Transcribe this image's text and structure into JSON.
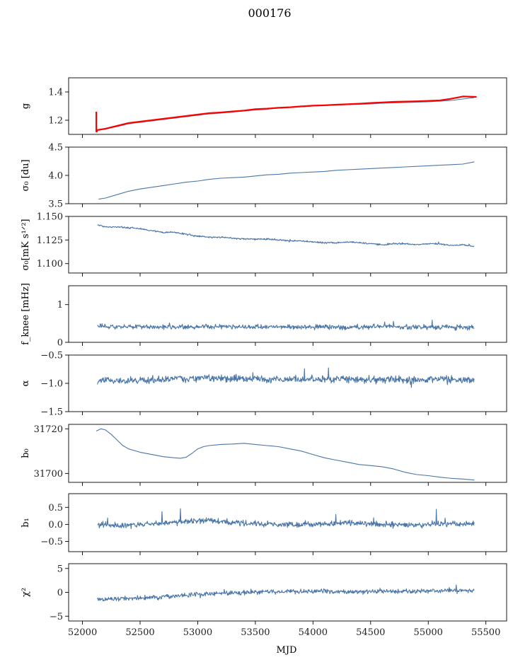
{
  "figure": {
    "title": "000176",
    "xlabel": "MJD"
  },
  "colors": {
    "series": "#4a76a8",
    "model": "#ff0000"
  },
  "chart_data": [
    {
      "type": "line",
      "ylabel": "g",
      "ylim": [
        1.1,
        1.5
      ],
      "yticks": [
        1.2,
        1.4
      ],
      "ytick_labels": [
        "1.2",
        "1.4"
      ],
      "xlim": [
        51880,
        55680
      ],
      "series": [
        {
          "color": "#4a76a8",
          "style": "thin",
          "x": [
            52120,
            52200,
            52300,
            52400,
            52500,
            52600,
            52700,
            52800,
            52900,
            53000,
            53100,
            53200,
            53300,
            53400,
            53500,
            53600,
            53700,
            53800,
            53900,
            54000,
            54100,
            54200,
            54300,
            54400,
            54500,
            54600,
            54700,
            54800,
            54900,
            55000,
            55100,
            55200,
            55300,
            55400
          ],
          "y": [
            1.13,
            1.14,
            1.155,
            1.175,
            1.185,
            1.195,
            1.205,
            1.215,
            1.225,
            1.235,
            1.245,
            1.25,
            1.258,
            1.265,
            1.272,
            1.278,
            1.285,
            1.29,
            1.295,
            1.3,
            1.303,
            1.307,
            1.31,
            1.312,
            1.316,
            1.32,
            1.323,
            1.326,
            1.328,
            1.33,
            1.335,
            1.34,
            1.35,
            1.36
          ]
        },
        {
          "color": "#ff0000",
          "style": "thick",
          "x": [
            52120,
            52120,
            52125,
            52125,
            52200,
            52300,
            52400,
            52500,
            52600,
            52700,
            52800,
            52900,
            53000,
            53100,
            53200,
            53300,
            53400,
            53500,
            53600,
            53700,
            53800,
            53900,
            54000,
            54100,
            54200,
            54300,
            54400,
            54500,
            54600,
            54700,
            54800,
            54900,
            55000,
            55100,
            55200,
            55300,
            55420
          ],
          "y": [
            1.26,
            1.12,
            1.12,
            1.13,
            1.14,
            1.16,
            1.18,
            1.19,
            1.2,
            1.21,
            1.22,
            1.23,
            1.24,
            1.25,
            1.255,
            1.262,
            1.268,
            1.278,
            1.282,
            1.288,
            1.292,
            1.298,
            1.303,
            1.306,
            1.31,
            1.313,
            1.317,
            1.322,
            1.326,
            1.33,
            1.332,
            1.334,
            1.337,
            1.34,
            1.352,
            1.368,
            1.365
          ]
        }
      ]
    },
    {
      "type": "line",
      "ylabel": "σ₀ [du]",
      "ylim": [
        3.5,
        4.5
      ],
      "yticks": [
        3.5,
        4.0,
        4.5
      ],
      "ytick_labels": [
        "3.5",
        "4.0",
        "4.5"
      ],
      "xlim": [
        51880,
        55680
      ],
      "series": [
        {
          "color": "#4a76a8",
          "style": "thin",
          "x": [
            52140,
            52200,
            52300,
            52400,
            52500,
            52600,
            52700,
            52800,
            52900,
            53000,
            53100,
            53200,
            53300,
            53400,
            53500,
            53600,
            53700,
            53800,
            53900,
            54000,
            54100,
            54200,
            54300,
            54400,
            54500,
            54600,
            54700,
            54800,
            54900,
            55000,
            55100,
            55200,
            55300,
            55400
          ],
          "y": [
            3.58,
            3.6,
            3.66,
            3.72,
            3.76,
            3.79,
            3.82,
            3.85,
            3.88,
            3.9,
            3.93,
            3.95,
            3.96,
            3.97,
            3.99,
            4.01,
            4.02,
            4.04,
            4.05,
            4.06,
            4.07,
            4.09,
            4.1,
            4.11,
            4.12,
            4.13,
            4.14,
            4.15,
            4.16,
            4.17,
            4.18,
            4.19,
            4.2,
            4.24
          ]
        }
      ]
    },
    {
      "type": "line",
      "ylabel": "σ₀[mK s¹ᐟ²]",
      "ylim": [
        1.09,
        1.15
      ],
      "yticks": [
        1.1,
        1.125,
        1.15
      ],
      "ytick_labels": [
        "1.100",
        "1.125",
        "1.150"
      ],
      "xlim": [
        51880,
        55680
      ],
      "series": [
        {
          "color": "#4a76a8",
          "style": "noisy",
          "x": [
            52130,
            52200,
            52300,
            52400,
            52500,
            52600,
            52700,
            52800,
            52900,
            53000,
            53100,
            53200,
            53300,
            53400,
            53500,
            53600,
            53700,
            53800,
            53900,
            54000,
            54100,
            54200,
            54300,
            54400,
            54500,
            54600,
            54700,
            54800,
            54900,
            55000,
            55100,
            55200,
            55300,
            55400
          ],
          "y": [
            1.141,
            1.139,
            1.139,
            1.138,
            1.137,
            1.135,
            1.133,
            1.133,
            1.131,
            1.129,
            1.128,
            1.128,
            1.127,
            1.126,
            1.126,
            1.126,
            1.125,
            1.124,
            1.124,
            1.123,
            1.122,
            1.122,
            1.123,
            1.122,
            1.121,
            1.12,
            1.121,
            1.121,
            1.12,
            1.121,
            1.121,
            1.119,
            1.12,
            1.118
          ]
        }
      ]
    },
    {
      "type": "line",
      "ylabel": "f_knee [mHz]",
      "ylim": [
        0,
        1.5
      ],
      "yticks": [
        0,
        1
      ],
      "ytick_labels": [
        "0",
        "1"
      ],
      "xlim": [
        51880,
        55680
      ],
      "series": [
        {
          "color": "#4a76a8",
          "style": "noisy",
          "x": [
            52130,
            52300,
            52500,
            52700,
            52900,
            53100,
            53300,
            53500,
            53700,
            53900,
            54100,
            54300,
            54500,
            54700,
            54900,
            55100,
            55300,
            55400
          ],
          "y": [
            0.45,
            0.4,
            0.42,
            0.4,
            0.4,
            0.42,
            0.41,
            0.4,
            0.41,
            0.4,
            0.41,
            0.4,
            0.41,
            0.42,
            0.4,
            0.4,
            0.4,
            0.4
          ]
        }
      ]
    },
    {
      "type": "line",
      "ylabel": "α",
      "ylim": [
        -1.5,
        -0.5
      ],
      "yticks": [
        -1.5,
        -1.0,
        -0.5
      ],
      "ytick_labels": [
        "−1.5",
        "−1.0",
        "−0.5"
      ],
      "xlim": [
        51880,
        55680
      ],
      "series": [
        {
          "color": "#4a76a8",
          "style": "noisy",
          "x": [
            52130,
            52300,
            52500,
            52700,
            52900,
            53100,
            53300,
            53500,
            53700,
            53900,
            54100,
            54300,
            54500,
            54700,
            54900,
            55100,
            55300,
            55400
          ],
          "y": [
            -0.95,
            -0.95,
            -0.95,
            -0.93,
            -0.92,
            -0.9,
            -0.92,
            -0.92,
            -0.93,
            -0.93,
            -0.93,
            -0.93,
            -0.94,
            -0.93,
            -0.94,
            -0.93,
            -0.93,
            -0.93
          ]
        }
      ]
    },
    {
      "type": "line",
      "ylabel": "b₀",
      "ylim": [
        31696,
        31722
      ],
      "yticks": [
        31700,
        31720
      ],
      "ytick_labels": [
        "31700",
        "31720"
      ],
      "xlim": [
        51880,
        55680
      ],
      "series": [
        {
          "color": "#4a76a8",
          "style": "thin",
          "x": [
            52120,
            52160,
            52200,
            52250,
            52300,
            52350,
            52400,
            52500,
            52600,
            52700,
            52800,
            52850,
            52900,
            52950,
            53000,
            53050,
            53100,
            53200,
            53300,
            53400,
            53500,
            53600,
            53700,
            53800,
            53900,
            54000,
            54100,
            54200,
            54300,
            54400,
            54500,
            54600,
            54700,
            54800,
            54900,
            55000,
            55100,
            55200,
            55300,
            55400
          ],
          "y": [
            31719,
            31720,
            31719.5,
            31717.5,
            31715,
            31712.5,
            31711,
            31709.5,
            31708.5,
            31707.5,
            31707,
            31706.8,
            31707.3,
            31709,
            31711,
            31712,
            31712.5,
            31713,
            31713.2,
            31713.5,
            31713,
            31712.5,
            31712,
            31711,
            31710,
            31708.5,
            31707,
            31706,
            31705,
            31704,
            31703.5,
            31703,
            31702,
            31700.5,
            31699.5,
            31699,
            31698.3,
            31697.8,
            31697.5,
            31697
          ]
        }
      ]
    },
    {
      "type": "line",
      "ylabel": "b₁",
      "ylim": [
        -0.8,
        0.9
      ],
      "yticks": [
        -0.5,
        0.0,
        0.5
      ],
      "ytick_labels": [
        "−0.5",
        "0.0",
        "0.5"
      ],
      "xlim": [
        51880,
        55680
      ],
      "series": [
        {
          "color": "#4a76a8",
          "style": "noisy",
          "x": [
            52130,
            52300,
            52500,
            52700,
            52900,
            53100,
            53300,
            53500,
            53700,
            53900,
            54100,
            54300,
            54500,
            54700,
            54900,
            55100,
            55300,
            55400
          ],
          "y": [
            0.0,
            -0.05,
            0.0,
            0.02,
            0.1,
            0.12,
            0.05,
            0.02,
            0.0,
            0.0,
            0.02,
            0.05,
            0.0,
            0.0,
            -0.02,
            0.02,
            0.0,
            0.05
          ]
        }
      ]
    },
    {
      "type": "line",
      "ylabel": "χ²",
      "ylim": [
        -6,
        6
      ],
      "yticks": [
        -5,
        0,
        5
      ],
      "ytick_labels": [
        "−5",
        "0",
        "5"
      ],
      "xlim": [
        51880,
        55680
      ],
      "xticks": [
        52000,
        52500,
        53000,
        53500,
        54000,
        54500,
        55000,
        55500
      ],
      "xtick_labels": [
        "52000",
        "52500",
        "53000",
        "53500",
        "54000",
        "54500",
        "55000",
        "55500"
      ],
      "series": [
        {
          "color": "#4a76a8",
          "style": "noisy",
          "x": [
            52130,
            52300,
            52500,
            52700,
            52900,
            53100,
            53300,
            53500,
            53700,
            53900,
            54100,
            54300,
            54500,
            54700,
            54900,
            55100,
            55300,
            55400
          ],
          "y": [
            -1.5,
            -1.4,
            -1.2,
            -1.0,
            -0.6,
            -0.3,
            -0.1,
            0.1,
            0.1,
            0.2,
            0.2,
            0.1,
            0.2,
            0.2,
            0.3,
            0.3,
            0.4,
            0.3
          ]
        }
      ]
    }
  ]
}
